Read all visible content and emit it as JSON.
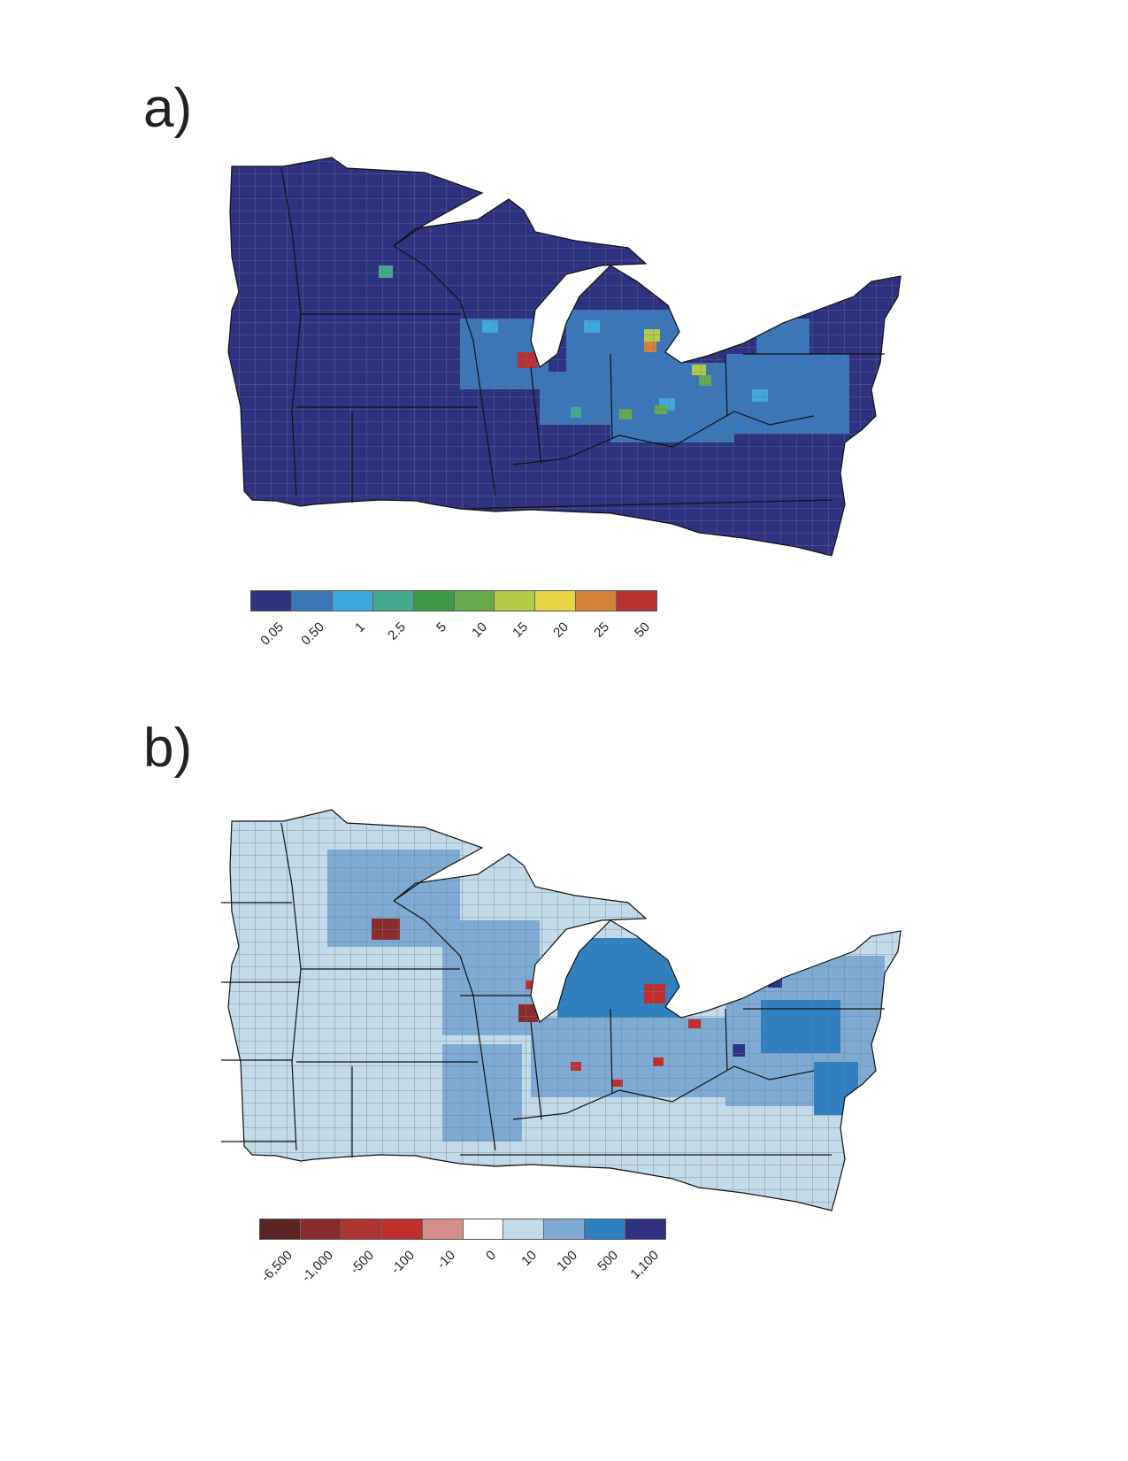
{
  "panels": [
    {
      "label": "a)",
      "legend": {
        "colors": [
          "#2e3280",
          "#3a76b8",
          "#3fa9df",
          "#45a891",
          "#3c9a48",
          "#67aa4e",
          "#b4cc45",
          "#e6d444",
          "#d4823a",
          "#b83232"
        ],
        "ticks": [
          "0.05",
          "0.50",
          "1",
          "2.5",
          "5",
          "10",
          "15",
          "20",
          "25",
          "50"
        ]
      },
      "base_color": "#2e3280",
      "highlight": {
        "west_mn": "#45a891",
        "wi_east": "#3a76b8",
        "wi_cyan": "#3fa9df",
        "chicago": "#b83232",
        "chicago2": "#d4823a",
        "mi_lower": "#3a76b8",
        "mi_green": "#b4cc45",
        "mi_yellow": "#e6d444",
        "ohio": "#3a76b8",
        "ohio_green": "#67aa4e",
        "pa": "#3a76b8",
        "cyan": "#3fa9df"
      }
    },
    {
      "label": "b)",
      "legend": {
        "colors": [
          "#5b2323",
          "#8a2c2e",
          "#ad3431",
          "#bf2f2e",
          "#d48f8c",
          "#ffffff",
          "#c3dbe8",
          "#7faad3",
          "#2f80c1",
          "#2e3280"
        ],
        "ticks": [
          "-6,500",
          "-1,000",
          "-500",
          "-100",
          "-10",
          "0",
          "10",
          "100",
          "500",
          "1,100"
        ]
      },
      "base_color": "#c3dbe8",
      "highlight": {
        "mid": "#7faad3",
        "strong": "#2f80c1",
        "dark": "#2e3280",
        "red": "#bf2f2e",
        "darkred": "#8a2c2e"
      }
    }
  ]
}
